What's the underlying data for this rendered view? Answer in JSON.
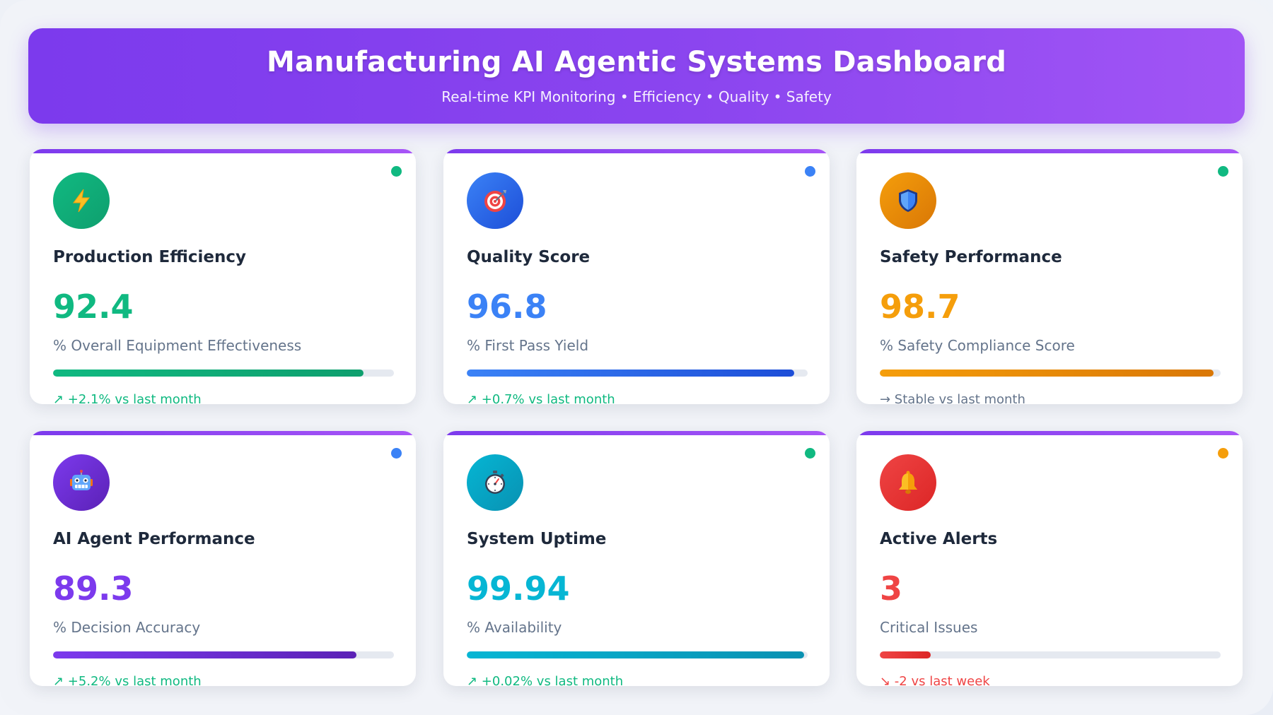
{
  "header": {
    "title": "Manufacturing AI Agentic Systems Dashboard",
    "subtitle": "Real-time KPI Monitoring • Efficiency • Quality • Safety"
  },
  "cards": [
    {
      "title": "Production Efficiency",
      "value": "92.4",
      "label": "% Overall Equipment Effectiveness",
      "trend": "↗ +2.1% vs last month",
      "progress": 0.91,
      "icon": "lightning-icon",
      "color": "#10b981",
      "color_dark": "#0f9f6e",
      "status_color": "#10b981",
      "trend_color": "#10b981"
    },
    {
      "title": "Quality Score",
      "value": "96.8",
      "label": "% First Pass Yield",
      "trend": "↗ +0.7% vs last month",
      "progress": 0.96,
      "icon": "target-icon",
      "color": "#3b82f6",
      "color_dark": "#1d4ed8",
      "status_color": "#3b82f6",
      "trend_color": "#10b981"
    },
    {
      "title": "Safety Performance",
      "value": "98.7",
      "label": "% Safety Compliance Score",
      "trend": "→ Stable vs last month",
      "progress": 0.98,
      "icon": "shield-icon",
      "color": "#f59e0b",
      "color_dark": "#d97706",
      "status_color": "#10b981",
      "trend_color": "#64748b"
    },
    {
      "title": "AI Agent Performance",
      "value": "89.3",
      "label": "% Decision Accuracy",
      "trend": "↗ +5.2% vs last month",
      "progress": 0.89,
      "icon": "robot-icon",
      "color": "#7c3aed",
      "color_dark": "#5b21b6",
      "status_color": "#3b82f6",
      "trend_color": "#10b981"
    },
    {
      "title": "System Uptime",
      "value": "99.94",
      "label": "% Availability",
      "trend": "↗ +0.02% vs last month",
      "progress": 0.99,
      "icon": "stopwatch-icon",
      "color": "#06b6d4",
      "color_dark": "#0891b2",
      "status_color": "#10b981",
      "trend_color": "#10b981"
    },
    {
      "title": "Active Alerts",
      "value": "3",
      "label": "Critical Issues",
      "trend": "↘ -2 vs last week",
      "progress": 0.15,
      "icon": "bell-icon",
      "color": "#ef4444",
      "color_dark": "#dc2626",
      "status_color": "#f59e0b",
      "trend_color": "#ef4444"
    }
  ]
}
